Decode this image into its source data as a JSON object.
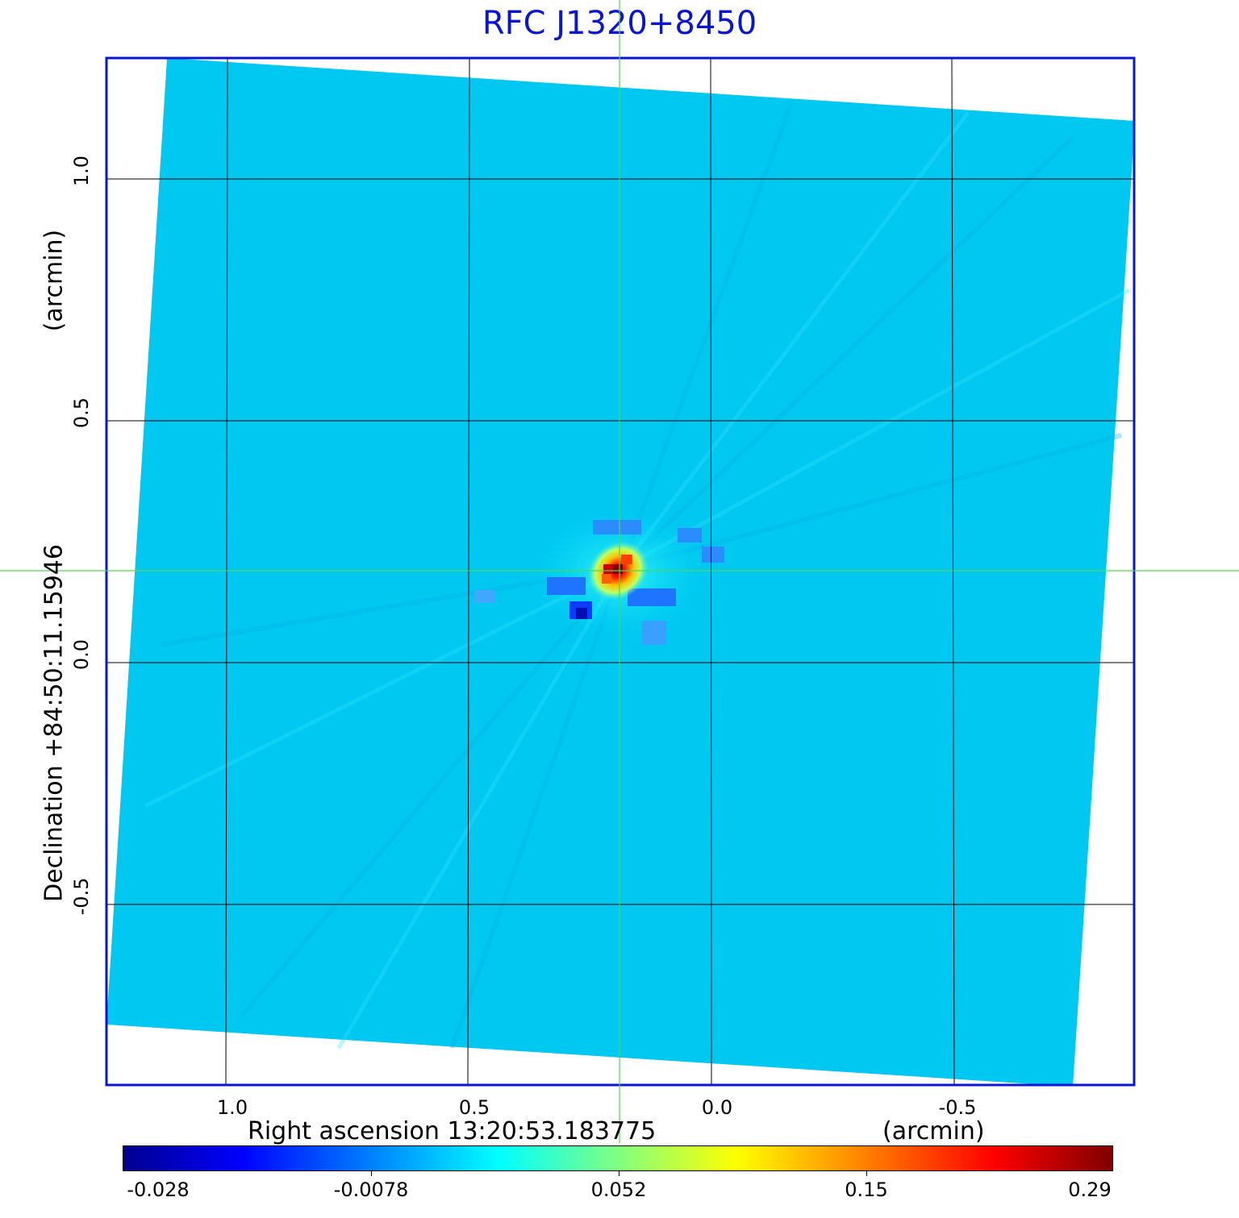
{
  "title": "RFC J1320+8450",
  "x_axis": {
    "label": "Right ascension  13:20:53.183775",
    "unit": "(arcmin)",
    "ticks": [
      "1.0",
      "0.5",
      "0.0",
      "-0.5"
    ]
  },
  "y_axis": {
    "label": "Declination  +84:50:11.15946",
    "unit": "(arcmin)",
    "ticks": [
      "1.0",
      "0.5",
      "0.0",
      "-0.5"
    ]
  },
  "colorbar": {
    "colormap": "jet",
    "ticks": [
      "-0.028",
      "-0.0078",
      "0.052",
      "0.15",
      "0.29"
    ]
  },
  "colors": {
    "frame": "#0a14d4",
    "crosshair": "#4cd94c",
    "background_field": "#00c8f0",
    "grid": "#000000"
  }
}
